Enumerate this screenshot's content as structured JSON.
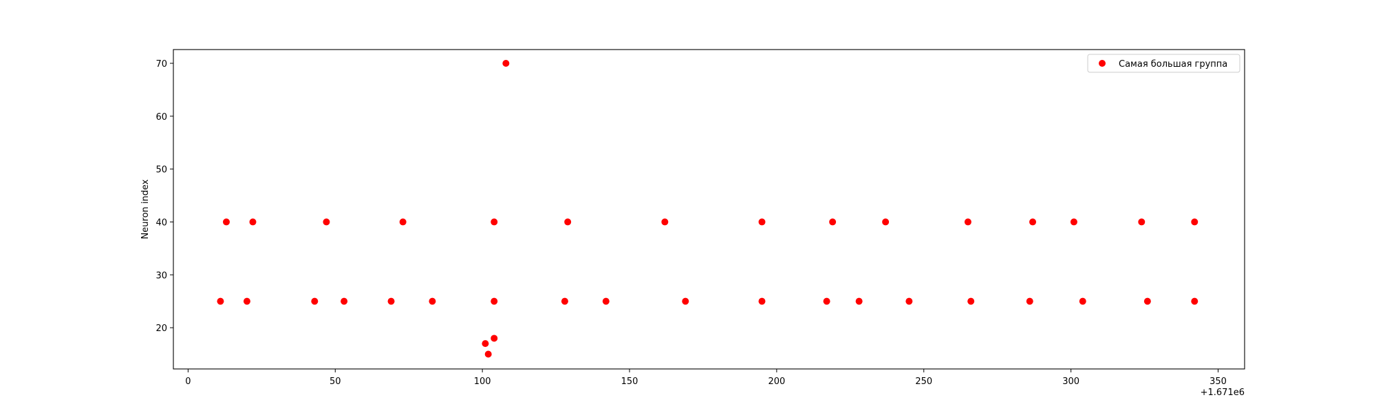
{
  "chart_data": {
    "type": "scatter",
    "title": "",
    "xlabel": "",
    "ylabel": "Neuron index",
    "x_offset_label": "+1.671e6",
    "xlim": [
      -5,
      359
    ],
    "ylim": [
      12.2,
      72.6
    ],
    "xticks": [
      0,
      50,
      100,
      150,
      200,
      250,
      300,
      350
    ],
    "yticks": [
      20,
      30,
      40,
      50,
      60,
      70
    ],
    "grid": false,
    "legend_position": "top-right",
    "series": [
      {
        "name": "Самая большая группа",
        "color": "#ff0000",
        "x": [
          11,
          13,
          20,
          22,
          43,
          47,
          53,
          69,
          73,
          83,
          101,
          102,
          104,
          104,
          104,
          108,
          128,
          129,
          142,
          162,
          169,
          195,
          195,
          217,
          219,
          228,
          237,
          245,
          265,
          266,
          286,
          287,
          301,
          304,
          324,
          326,
          342,
          342
        ],
        "y": [
          25,
          40,
          25,
          40,
          25,
          40,
          25,
          25,
          40,
          25,
          17,
          15,
          18,
          25,
          40,
          70,
          25,
          40,
          25,
          40,
          25,
          25,
          40,
          25,
          40,
          25,
          40,
          25,
          40,
          25,
          25,
          40,
          40,
          25,
          40,
          25,
          25,
          40
        ]
      }
    ]
  }
}
